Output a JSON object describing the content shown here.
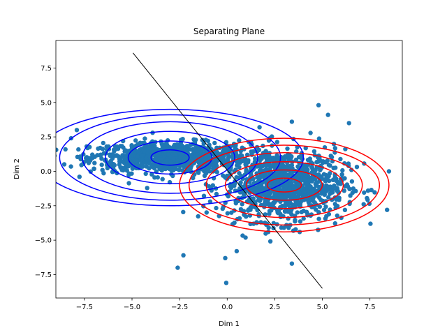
{
  "chart_data": {
    "type": "scatter",
    "title": "Separating Plane",
    "xlabel": "Dim 1",
    "ylabel": "Dim 2",
    "xlim": [
      -9.0,
      9.2
    ],
    "ylim": [
      -9.2,
      9.5
    ],
    "xticks": [
      -7.5,
      -5.0,
      -2.5,
      0.0,
      2.5,
      5.0,
      7.5
    ],
    "yticks": [
      -7.5,
      -5.0,
      -2.5,
      0.0,
      2.5,
      5.0,
      7.5
    ],
    "xtick_labels": [
      "−7.5",
      "−5.0",
      "−2.5",
      "0.0",
      "2.5",
      "5.0",
      "7.5"
    ],
    "ytick_labels": [
      "−7.5",
      "−5.0",
      "−2.5",
      "0.0",
      "2.5",
      "5.0",
      "7.5"
    ],
    "grid": false,
    "point_color": "#1f77b4",
    "separating_line": {
      "color": "#000000",
      "from": [
        -4.95,
        8.6
      ],
      "to": [
        5.0,
        -8.5
      ]
    },
    "contour_sets": [
      {
        "color": "#0000ff",
        "center": [
          -3.0,
          1.0
        ],
        "levels": [
          {
            "rx": 1.0,
            "ry": 0.55
          },
          {
            "rx": 2.2,
            "ry": 1.2
          },
          {
            "rx": 3.4,
            "ry": 1.9
          },
          {
            "rx": 4.6,
            "ry": 2.6
          },
          {
            "rx": 5.8,
            "ry": 3.1
          },
          {
            "rx": 7.0,
            "ry": 3.5
          }
        ]
      },
      {
        "color": "#ff0000",
        "center": [
          3.0,
          -1.0
        ],
        "levels": [
          {
            "rx": 0.9,
            "ry": 0.5
          },
          {
            "rx": 2.0,
            "ry": 1.1
          },
          {
            "rx": 3.1,
            "ry": 1.7
          },
          {
            "rx": 4.1,
            "ry": 2.35
          },
          {
            "rx": 5.0,
            "ry": 2.9
          },
          {
            "rx": 5.5,
            "ry": 3.4
          }
        ]
      }
    ],
    "clusters": [
      {
        "center": [
          -3.0,
          1.0
        ],
        "count": 900,
        "sx": 2.1,
        "sy": 0.55
      },
      {
        "center": [
          3.0,
          -1.0
        ],
        "count": 1000,
        "sx": 1.6,
        "sy": 1.3
      }
    ],
    "outliers": [
      [
        -0.05,
        -8.1
      ],
      [
        -2.6,
        -7.0
      ],
      [
        -2.3,
        -6.1
      ],
      [
        -0.1,
        -6.3
      ],
      [
        0.5,
        -5.8
      ],
      [
        3.4,
        -6.7
      ],
      [
        4.8,
        4.8
      ],
      [
        5.3,
        4.1
      ],
      [
        3.4,
        3.6
      ],
      [
        1.7,
        3.2
      ],
      [
        6.4,
        3.5
      ],
      [
        8.5,
        0.0
      ],
      [
        8.4,
        -2.8
      ],
      [
        -7.9,
        3.0
      ],
      [
        -8.2,
        2.4
      ]
    ]
  }
}
